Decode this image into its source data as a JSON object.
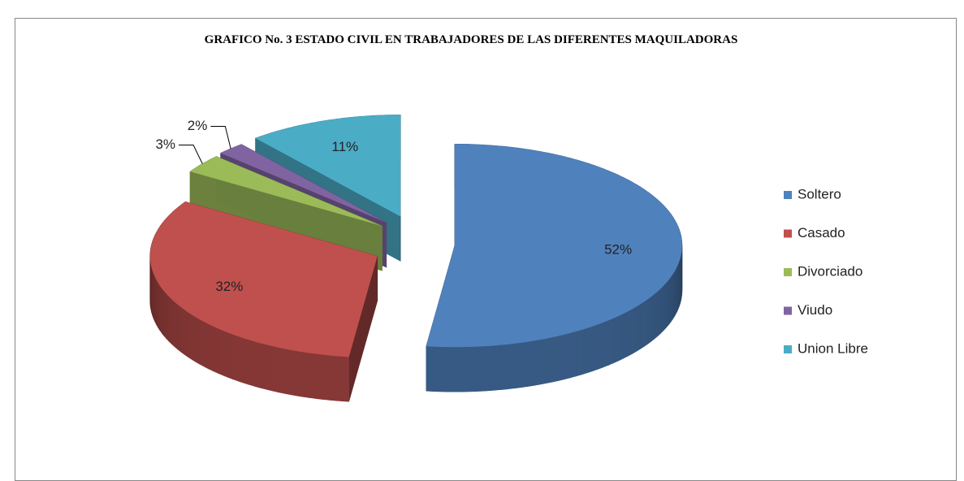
{
  "chart_data": {
    "type": "pie",
    "title": "GRAFICO No. 3 ESTADO CIVIL EN TRABAJADORES DE LAS DIFERENTES MAQUILADORAS",
    "categories": [
      "Soltero",
      "Casado",
      "Divorciado",
      "Viudo",
      "Union Libre"
    ],
    "values": [
      52,
      32,
      3,
      2,
      11
    ],
    "value_labels": [
      "52%",
      "32%",
      "3%",
      "2%",
      "11%"
    ],
    "colors": [
      "#4f81bd",
      "#c0504d",
      "#9bbb59",
      "#8064a2",
      "#4bacc6"
    ],
    "legend": "right"
  }
}
